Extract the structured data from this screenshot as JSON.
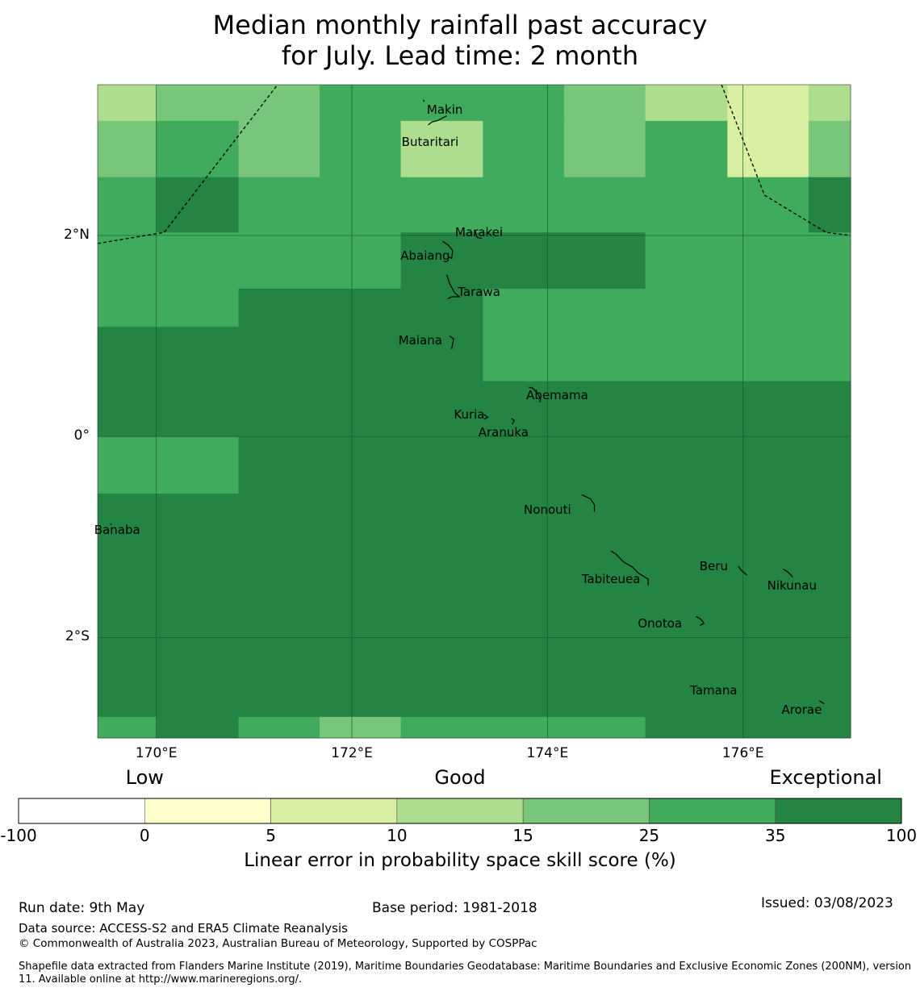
{
  "title_line1": "Median monthly rainfall past accuracy",
  "title_line2": "for July. Lead time: 2 month",
  "map": {
    "lon_range": [
      169.4,
      177.1
    ],
    "lat_range": [
      -3.0,
      3.5
    ],
    "lat_labels": [
      {
        "text": "2°N",
        "lat": 2
      },
      {
        "text": "0°",
        "lat": 0
      },
      {
        "text": "2°S",
        "lat": -2
      }
    ],
    "lon_labels": [
      {
        "text": "170°E",
        "lon": 170
      },
      {
        "text": "172°E",
        "lon": 172
      },
      {
        "text": "174°E",
        "lon": 174
      },
      {
        "text": "176°E",
        "lon": 176
      }
    ],
    "grid": "on",
    "places": [
      {
        "name": "Makin",
        "lon": 172.95,
        "lat": 3.25
      },
      {
        "name": "Butaritari",
        "lon": 172.8,
        "lat": 2.93
      },
      {
        "name": "Marakei",
        "lon": 173.3,
        "lat": 2.03
      },
      {
        "name": "Abaiang",
        "lon": 172.75,
        "lat": 1.8
      },
      {
        "name": "Tarawa",
        "lon": 173.3,
        "lat": 1.44
      },
      {
        "name": "Maiana",
        "lon": 172.7,
        "lat": 0.96
      },
      {
        "name": "Abemama",
        "lon": 174.1,
        "lat": 0.41
      },
      {
        "name": "Kuria",
        "lon": 173.2,
        "lat": 0.22
      },
      {
        "name": "Aranuka",
        "lon": 173.55,
        "lat": 0.04
      },
      {
        "name": "Nonouti",
        "lon": 174.0,
        "lat": -0.73
      },
      {
        "name": "Banaba",
        "lon": 169.6,
        "lat": -0.93
      },
      {
        "name": "Beru",
        "lon": 175.7,
        "lat": -1.29
      },
      {
        "name": "Tabiteuea",
        "lon": 174.65,
        "lat": -1.42
      },
      {
        "name": "Nikunau",
        "lon": 176.5,
        "lat": -1.48
      },
      {
        "name": "Onotoa",
        "lon": 175.15,
        "lat": -1.86
      },
      {
        "name": "Tamana",
        "lon": 175.7,
        "lat": -2.53
      },
      {
        "name": "Arorae",
        "lon": 176.6,
        "lat": -2.72
      }
    ],
    "cells": [
      {
        "lon0": 169.4,
        "lon1": 170.0,
        "lat0": 3.14,
        "lat1": 3.5,
        "bin": 3
      },
      {
        "lon0": 170.0,
        "lon1": 170.84,
        "lat0": 3.14,
        "lat1": 3.5,
        "bin": 4
      },
      {
        "lon0": 170.84,
        "lon1": 171.67,
        "lat0": 3.14,
        "lat1": 3.5,
        "bin": 4
      },
      {
        "lon0": 171.67,
        "lon1": 174.17,
        "lat0": 3.14,
        "lat1": 3.5,
        "bin": 5
      },
      {
        "lon0": 174.17,
        "lon1": 175.0,
        "lat0": 3.14,
        "lat1": 3.5,
        "bin": 4
      },
      {
        "lon0": 175.0,
        "lon1": 175.84,
        "lat0": 3.14,
        "lat1": 3.5,
        "bin": 3
      },
      {
        "lon0": 175.84,
        "lon1": 176.67,
        "lat0": 3.14,
        "lat1": 3.5,
        "bin": 2
      },
      {
        "lon0": 176.67,
        "lon1": 177.1,
        "lat0": 3.14,
        "lat1": 3.5,
        "bin": 3
      },
      {
        "lon0": 169.4,
        "lon1": 170.0,
        "lat0": 2.58,
        "lat1": 3.14,
        "bin": 4
      },
      {
        "lon0": 170.0,
        "lon1": 170.84,
        "lat0": 2.58,
        "lat1": 3.14,
        "bin": 5
      },
      {
        "lon0": 170.84,
        "lon1": 171.67,
        "lat0": 2.58,
        "lat1": 3.14,
        "bin": 4
      },
      {
        "lon0": 171.67,
        "lon1": 172.5,
        "lat0": 2.58,
        "lat1": 3.14,
        "bin": 5
      },
      {
        "lon0": 172.5,
        "lon1": 173.34,
        "lat0": 2.58,
        "lat1": 3.14,
        "bin": 3
      },
      {
        "lon0": 173.34,
        "lon1": 174.17,
        "lat0": 2.58,
        "lat1": 3.14,
        "bin": 5
      },
      {
        "lon0": 174.17,
        "lon1": 175.0,
        "lat0": 2.58,
        "lat1": 3.14,
        "bin": 4
      },
      {
        "lon0": 175.0,
        "lon1": 175.84,
        "lat0": 2.58,
        "lat1": 3.14,
        "bin": 5
      },
      {
        "lon0": 175.84,
        "lon1": 176.67,
        "lat0": 2.58,
        "lat1": 3.14,
        "bin": 2
      },
      {
        "lon0": 176.67,
        "lon1": 177.1,
        "lat0": 2.58,
        "lat1": 3.14,
        "bin": 4
      },
      {
        "lon0": 169.4,
        "lon1": 170.0,
        "lat0": 2.03,
        "lat1": 2.58,
        "bin": 5
      },
      {
        "lon0": 170.0,
        "lon1": 170.84,
        "lat0": 2.03,
        "lat1": 2.58,
        "bin": 6
      },
      {
        "lon0": 170.84,
        "lon1": 176.67,
        "lat0": 2.03,
        "lat1": 2.58,
        "bin": 5
      },
      {
        "lon0": 176.67,
        "lon1": 177.1,
        "lat0": 2.03,
        "lat1": 2.58,
        "bin": 6
      },
      {
        "lon0": 169.4,
        "lon1": 172.5,
        "lat0": 1.47,
        "lat1": 2.03,
        "bin": 5
      },
      {
        "lon0": 172.5,
        "lon1": 175.0,
        "lat0": 1.47,
        "lat1": 2.03,
        "bin": 6
      },
      {
        "lon0": 175.0,
        "lon1": 177.1,
        "lat0": 1.47,
        "lat1": 2.03,
        "bin": 5
      },
      {
        "lon0": 169.4,
        "lon1": 170.84,
        "lat0": 1.09,
        "lat1": 1.47,
        "bin": 5
      },
      {
        "lon0": 170.84,
        "lon1": 173.34,
        "lat0": 1.09,
        "lat1": 1.47,
        "bin": 6
      },
      {
        "lon0": 173.34,
        "lon1": 177.1,
        "lat0": 1.09,
        "lat1": 1.47,
        "bin": 5
      },
      {
        "lon0": 169.4,
        "lon1": 173.34,
        "lat0": 0.55,
        "lat1": 1.09,
        "bin": 6
      },
      {
        "lon0": 173.34,
        "lon1": 177.1,
        "lat0": 0.55,
        "lat1": 1.09,
        "bin": 5
      },
      {
        "lon0": 169.4,
        "lon1": 177.1,
        "lat0": 0.0,
        "lat1": 0.55,
        "bin": 6
      },
      {
        "lon0": 169.4,
        "lon1": 170.84,
        "lat0": -0.57,
        "lat1": 0.0,
        "bin": 5
      },
      {
        "lon0": 170.84,
        "lon1": 177.1,
        "lat0": -0.57,
        "lat1": 0.0,
        "bin": 6
      },
      {
        "lon0": 169.4,
        "lon1": 177.1,
        "lat0": -2.79,
        "lat1": -0.57,
        "bin": 6
      },
      {
        "lon0": 169.4,
        "lon1": 170.0,
        "lat0": -3.0,
        "lat1": -2.79,
        "bin": 5
      },
      {
        "lon0": 170.0,
        "lon1": 170.84,
        "lat0": -3.0,
        "lat1": -2.79,
        "bin": 6
      },
      {
        "lon0": 170.84,
        "lon1": 171.67,
        "lat0": -3.0,
        "lat1": -2.79,
        "bin": 5
      },
      {
        "lon0": 171.67,
        "lon1": 172.5,
        "lat0": -3.0,
        "lat1": -2.79,
        "bin": 4
      },
      {
        "lon0": 172.5,
        "lon1": 175.0,
        "lat0": -3.0,
        "lat1": -2.79,
        "bin": 5
      },
      {
        "lon0": 175.0,
        "lon1": 177.1,
        "lat0": -3.0,
        "lat1": -2.79,
        "bin": 6
      }
    ],
    "eez_boundaries": [
      [
        [
          169.4,
          1.92
        ],
        [
          170.08,
          2.03
        ],
        [
          171.24,
          3.5
        ]
      ],
      [
        [
          175.78,
          3.5
        ],
        [
          176.22,
          2.4
        ],
        [
          176.85,
          2.03
        ],
        [
          177.1,
          2.0
        ]
      ]
    ]
  },
  "categories": [
    {
      "text": "Low",
      "anchor": 1
    },
    {
      "text": "Good",
      "anchor": 3.5
    },
    {
      "text": "Exceptional",
      "anchor": 6.4
    }
  ],
  "colorbar": {
    "ticks": [
      "-100",
      "0",
      "5",
      "10",
      "15",
      "25",
      "35",
      "100"
    ],
    "colors": [
      "#ffffff",
      "#ffffcc",
      "#d9f0a3",
      "#addd8e",
      "#78c679",
      "#41ab5d",
      "#238443"
    ],
    "label": "Linear error in probability space skill score (%)"
  },
  "footer": {
    "run_date": "Run date: 9th May",
    "base_period": "Base period: 1981-2018",
    "issued": "Issued: 03/08/2023",
    "data_source": "Data source: ACCESS-S2 and ERA5 Climate Reanalysis",
    "copyright": "© Commonwealth of Australia 2023, Australian Bureau of Meteorology, Supported by COSPPac",
    "shapefile_note": "Shapefile data extracted from Flanders Marine Institute (2019), Maritime Boundaries Geodatabase: Maritime Boundaries and Exclusive Economic Zones (200NM), version 11. Available online at http://www.marineregions.org/."
  }
}
